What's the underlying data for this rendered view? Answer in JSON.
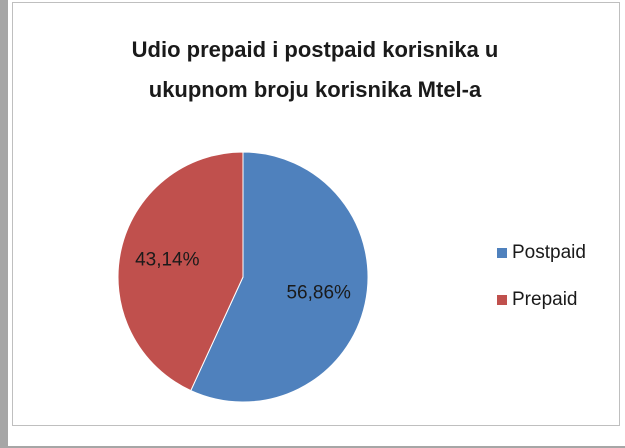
{
  "chart_data": {
    "type": "pie",
    "title": "Udio prepaid i postpaid korisnika u ukupnom broju korisnika Mtel-a",
    "categories": [
      "Postpaid",
      "Prepaid"
    ],
    "values": [
      56.86,
      43.14
    ],
    "value_labels": [
      "56,86%",
      "43,14%"
    ],
    "colors": [
      "#4f81bd",
      "#c0504d"
    ],
    "legend": "right"
  }
}
